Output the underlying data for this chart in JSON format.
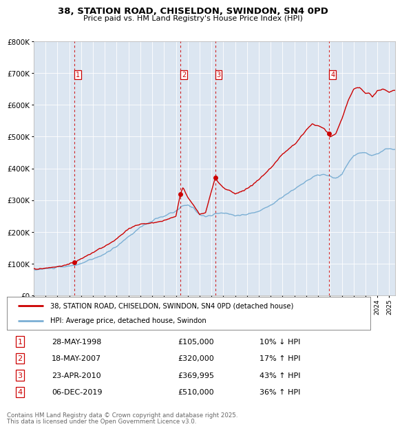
{
  "title": "38, STATION ROAD, CHISELDON, SWINDON, SN4 0PD",
  "subtitle": "Price paid vs. HM Land Registry's House Price Index (HPI)",
  "legend_line1": "38, STATION ROAD, CHISELDON, SWINDON, SN4 0PD (detached house)",
  "legend_line2": "HPI: Average price, detached house, Swindon",
  "footer1": "Contains HM Land Registry data © Crown copyright and database right 2025.",
  "footer2": "This data is licensed under the Open Government Licence v3.0.",
  "dates_str": [
    "28-MAY-1998",
    "18-MAY-2007",
    "23-APR-2010",
    "06-DEC-2019"
  ],
  "prices_str": [
    "£105,000",
    "£320,000",
    "£369,995",
    "£510,000"
  ],
  "hpi_str": [
    "10% ↓ HPI",
    "17% ↑ HPI",
    "43% ↑ HPI",
    "36% ↑ HPI"
  ],
  "trans_years": [
    1998.413,
    2007.378,
    2010.311,
    2019.927
  ],
  "trans_prices": [
    105000,
    320000,
    369995,
    510000
  ],
  "property_color": "#cc0000",
  "hpi_color": "#7bafd4",
  "background_color": "#dce6f1",
  "ylim": [
    0,
    800000
  ],
  "yticks": [
    0,
    100000,
    200000,
    300000,
    400000,
    500000,
    600000,
    700000,
    800000
  ],
  "xlim_start": 1995.0,
  "xlim_end": 2025.5
}
